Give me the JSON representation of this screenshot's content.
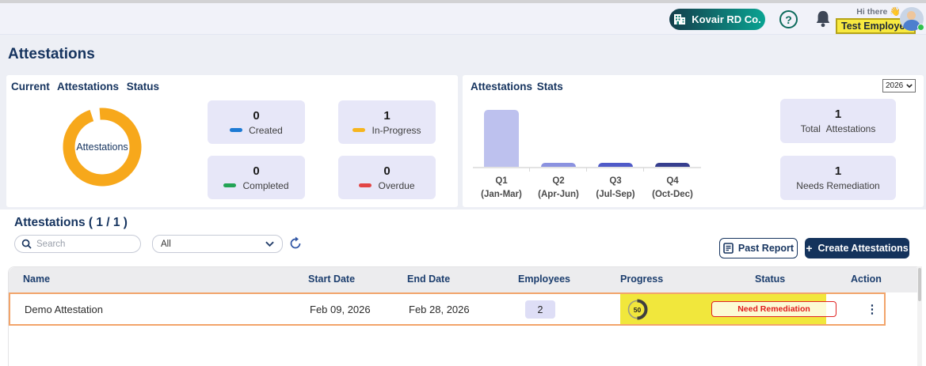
{
  "header": {
    "company_button_label": "Kovair RD Co.",
    "help_glyph": "?",
    "greeting": "Hi there",
    "wave_emoji": "👋",
    "user_name": "Test Employee"
  },
  "page": {
    "title": "Attestations"
  },
  "status_panel": {
    "title": "Current Attestations Status",
    "cards": [
      {
        "value": "0",
        "label": "Created",
        "color": "#1d7ad4"
      },
      {
        "value": "1",
        "label": "In-Progress",
        "color": "#f6b51e"
      },
      {
        "value": "0",
        "label": "Completed",
        "color": "#23a455"
      },
      {
        "value": "0",
        "label": "Overdue",
        "color": "#e24545"
      }
    ]
  },
  "stats_panel": {
    "title": "Attestations Stats",
    "year_selected": "2026",
    "cards": [
      {
        "value": "1",
        "label": "Total Attestations"
      },
      {
        "value": "1",
        "label": "Needs Remediation"
      }
    ]
  },
  "chart_data": [
    {
      "type": "donut",
      "center_label": "Attestations",
      "series": [
        {
          "name": "In-Progress",
          "value": 1,
          "color": "#f7a81b"
        }
      ]
    },
    {
      "type": "bar",
      "title": "Attestations Stats",
      "categories": [
        "Q1 (Jan-Mar)",
        "Q2 (Apr-Jun)",
        "Q3 (Jul-Sep)",
        "Q4 (Oct-Dec)"
      ],
      "tick_lines": [
        [
          "Q1",
          "(Jan-Mar)"
        ],
        [
          "Q2",
          "(Apr-Jun)"
        ],
        [
          "Q3",
          "(Jul-Sep)"
        ],
        [
          "Q4",
          "(Oct-Dec)"
        ]
      ],
      "values": [
        1,
        0,
        0,
        0
      ],
      "bar_colors": [
        "#bdc1ee",
        "#8b92e0",
        "#4f5ac8",
        "#363e8e"
      ],
      "ylim": [
        0,
        1
      ],
      "xlabel": "",
      "ylabel": "",
      "grid": false,
      "legend": false
    }
  ],
  "list_section": {
    "title": "Attestations ( 1 / 1 )",
    "search_placeholder": "Search",
    "filter_selected": "All",
    "past_report_label": "Past Report",
    "create_plus": "+",
    "create_label": "Create Attestations"
  },
  "table": {
    "columns": [
      "Name",
      "Start Date",
      "End Date",
      "Employees",
      "Progress",
      "Status",
      "Action"
    ],
    "rows": [
      {
        "name": "Demo Attestation",
        "start_date": "Feb 09, 2026",
        "end_date": "Feb 28, 2026",
        "employees": "2",
        "progress": "50",
        "status": "Need Remediation"
      }
    ]
  },
  "glyphs": {
    "kebab": "⋮"
  }
}
